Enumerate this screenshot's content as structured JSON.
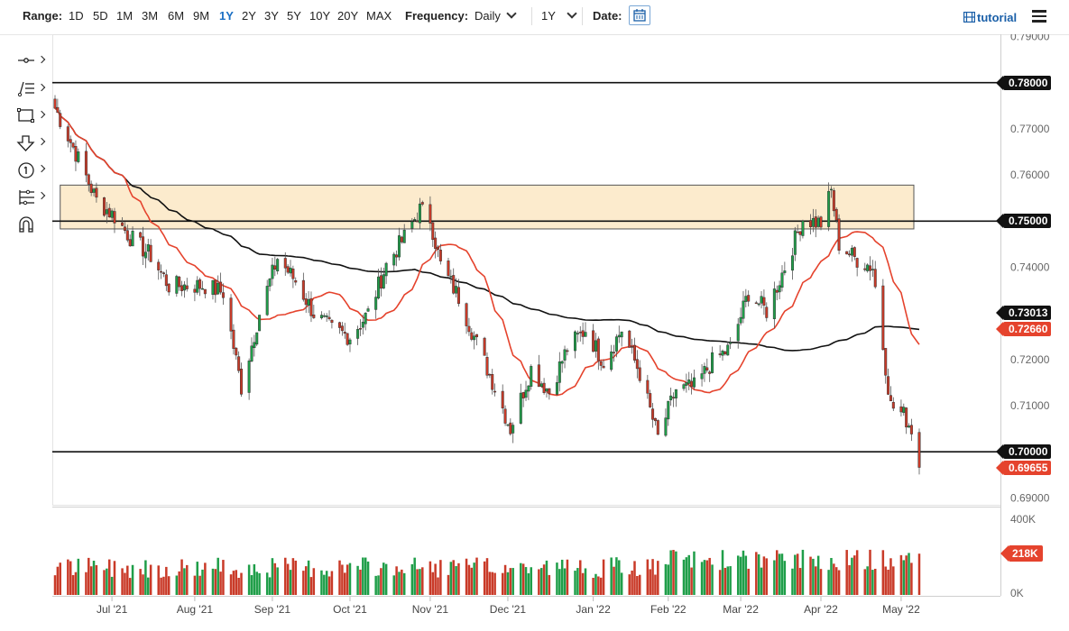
{
  "toolbar": {
    "range_label": "Range:",
    "ranges": [
      "1D",
      "5D",
      "1M",
      "3M",
      "6M",
      "9M",
      "1Y",
      "2Y",
      "3Y",
      "5Y",
      "10Y",
      "20Y",
      "MAX"
    ],
    "active_range": "1Y",
    "frequency_label": "Frequency:",
    "frequency_value": "Daily",
    "period_value": "1Y",
    "date_label": "Date:",
    "tutorial_label": "tutorial"
  },
  "left_tools": [
    "crosshair-icon",
    "trend-lines-icon",
    "rectangle-icon",
    "arrow-down-icon",
    "number-label-icon",
    "fib-tools-icon",
    "magnet-icon"
  ],
  "colors": {
    "up": "#1f9e49",
    "down": "#c93a28",
    "ma_fast": "#e5432d",
    "ma_slow": "#111111",
    "zone_fill": "#fbe7c4",
    "zone_border": "#555555"
  },
  "chart_data": {
    "type": "candlestick",
    "ylim": [
      0.6885,
      0.7905
    ],
    "y_ticks": [
      "0.79000",
      "0.77000",
      "0.76000",
      "0.74000",
      "0.72000",
      "0.71000",
      "0.69000"
    ],
    "x_ticks": [
      {
        "label": "Jul '21",
        "date": "2021-07-01"
      },
      {
        "label": "Aug '21",
        "date": "2021-08-02"
      },
      {
        "label": "Sep '21",
        "date": "2021-09-01"
      },
      {
        "label": "Oct '21",
        "date": "2021-10-01"
      },
      {
        "label": "Nov '21",
        "date": "2021-11-01"
      },
      {
        "label": "Dec '21",
        "date": "2021-12-01"
      },
      {
        "label": "Jan '22",
        "date": "2022-01-03"
      },
      {
        "label": "Feb '22",
        "date": "2022-02-01"
      },
      {
        "label": "Mar '22",
        "date": "2022-03-01"
      },
      {
        "label": "Apr '22",
        "date": "2022-04-01"
      },
      {
        "label": "May '22",
        "date": "2022-05-02"
      }
    ],
    "date_range": [
      "2021-06-09",
      "2022-05-09"
    ],
    "horizontal_lines": [
      {
        "value": 0.78,
        "label": "0.78000"
      },
      {
        "value": 0.75,
        "label": "0.75000"
      },
      {
        "value": 0.7,
        "label": "0.70000"
      }
    ],
    "zone": {
      "from_date": "2021-06-11",
      "to_date": "2022-05-09",
      "low": 0.7483,
      "high": 0.7578
    },
    "price_tags": [
      {
        "value": 0.73013,
        "label": "0.73013",
        "style": "black"
      },
      {
        "value": 0.7266,
        "label": "0.72660",
        "style": "red"
      },
      {
        "value": 0.69655,
        "label": "0.69655",
        "style": "red"
      }
    ],
    "close_anchors": [
      [
        "2021-06-09",
        0.7745
      ],
      [
        "2021-06-16",
        0.766
      ],
      [
        "2021-06-25",
        0.7545
      ],
      [
        "2021-07-02",
        0.751
      ],
      [
        "2021-07-08",
        0.7465
      ],
      [
        "2021-07-16",
        0.7425
      ],
      [
        "2021-07-23",
        0.736
      ],
      [
        "2021-07-30",
        0.736
      ],
      [
        "2021-08-06",
        0.736
      ],
      [
        "2021-08-13",
        0.7345
      ],
      [
        "2021-08-20",
        0.714
      ],
      [
        "2021-08-27",
        0.73
      ],
      [
        "2021-09-03",
        0.742
      ],
      [
        "2021-09-10",
        0.737
      ],
      [
        "2021-09-17",
        0.73
      ],
      [
        "2021-09-24",
        0.7265
      ],
      [
        "2021-10-01",
        0.725
      ],
      [
        "2021-10-08",
        0.73
      ],
      [
        "2021-10-15",
        0.7405
      ],
      [
        "2021-10-22",
        0.7465
      ],
      [
        "2021-10-28",
        0.7525
      ],
      [
        "2021-11-01",
        0.7505
      ],
      [
        "2021-11-05",
        0.7405
      ],
      [
        "2021-11-12",
        0.7335
      ],
      [
        "2021-11-19",
        0.7235
      ],
      [
        "2021-11-26",
        0.714
      ],
      [
        "2021-12-02",
        0.705
      ],
      [
        "2021-12-10",
        0.718
      ],
      [
        "2021-12-17",
        0.713
      ],
      [
        "2021-12-24",
        0.7225
      ],
      [
        "2021-12-31",
        0.7265
      ],
      [
        "2022-01-07",
        0.7195
      ],
      [
        "2022-01-14",
        0.7265
      ],
      [
        "2022-01-21",
        0.717
      ],
      [
        "2022-01-28",
        0.703
      ],
      [
        "2022-02-04",
        0.7135
      ],
      [
        "2022-02-11",
        0.714
      ],
      [
        "2022-02-18",
        0.7195
      ],
      [
        "2022-02-25",
        0.7225
      ],
      [
        "2022-03-04",
        0.7345
      ],
      [
        "2022-03-11",
        0.7305
      ],
      [
        "2022-03-18",
        0.74
      ],
      [
        "2022-03-25",
        0.7505
      ],
      [
        "2022-04-01",
        0.7495
      ],
      [
        "2022-04-05",
        0.7565
      ],
      [
        "2022-04-08",
        0.745
      ],
      [
        "2022-04-14",
        0.742
      ],
      [
        "2022-04-21",
        0.74
      ],
      [
        "2022-04-28",
        0.71
      ],
      [
        "2022-05-03",
        0.708
      ],
      [
        "2022-05-06",
        0.705
      ],
      [
        "2022-05-09",
        0.6966
      ]
    ],
    "volume": {
      "ylim": [
        0,
        400000
      ],
      "y_ticks": [
        "400K",
        "0K"
      ],
      "last_label": "218K",
      "last_value": 218000
    }
  }
}
